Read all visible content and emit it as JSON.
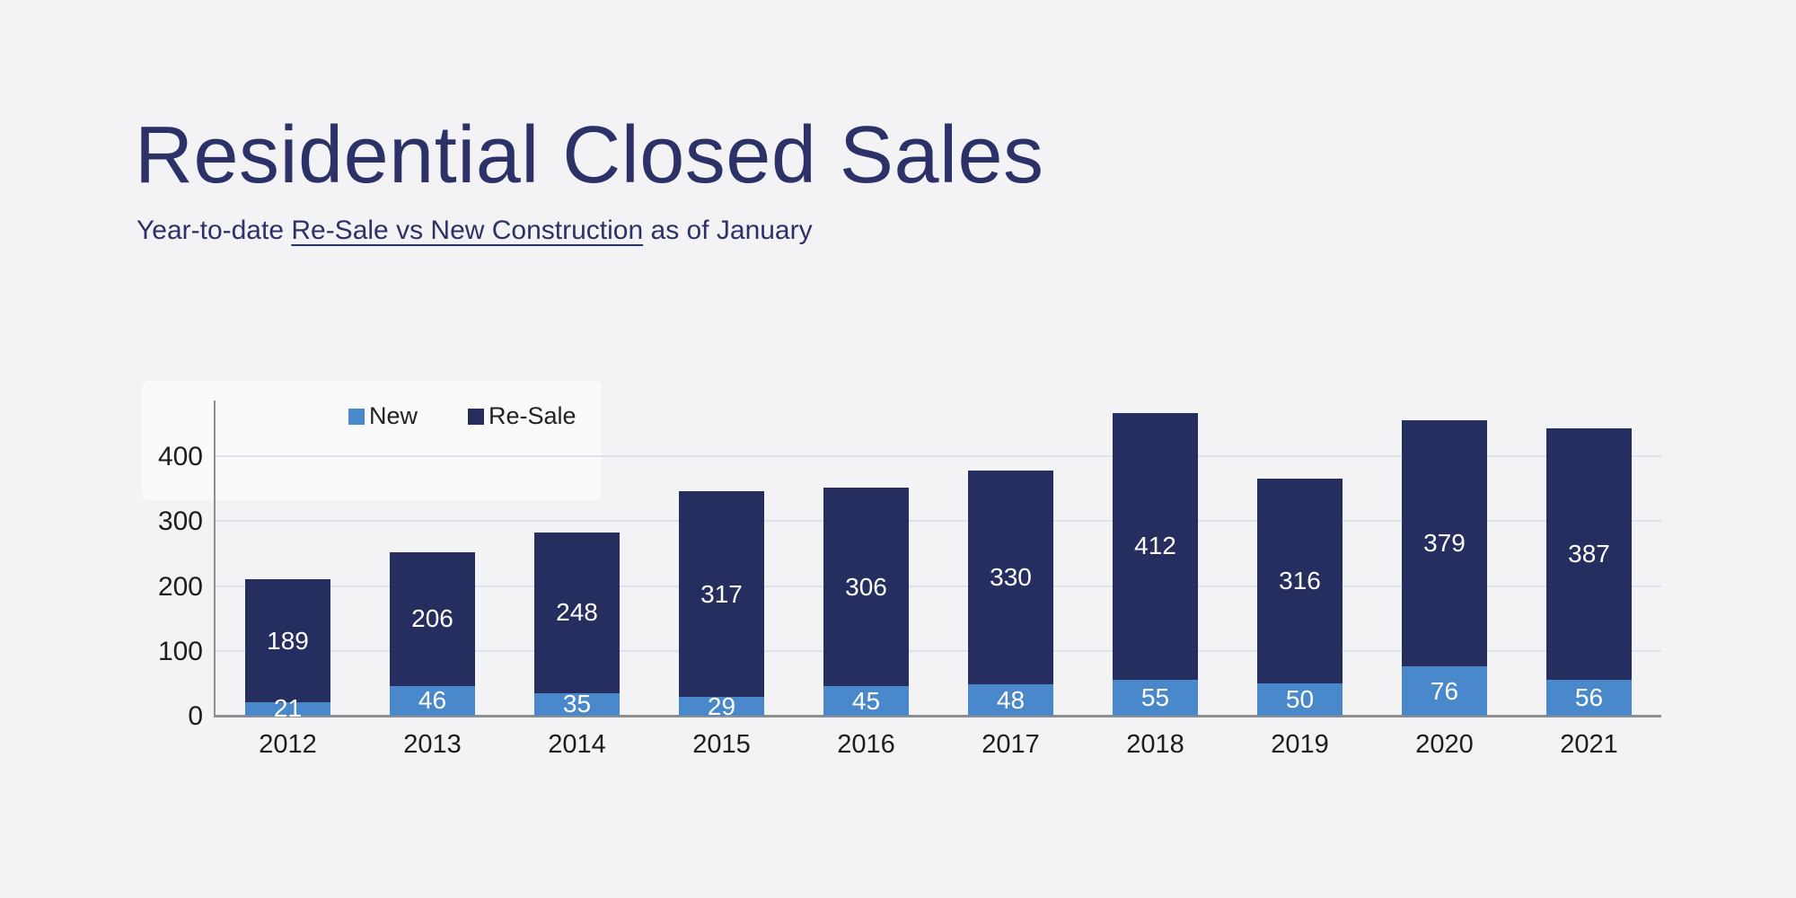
{
  "header": {
    "title": "Residential Closed Sales",
    "subtitle_prefix": "Year-to-date ",
    "subtitle_underlined": "Re-Sale vs New Construction",
    "subtitle_suffix": " as of January"
  },
  "colors": {
    "background": "#f3f3f5",
    "panel": "#fafafb",
    "title_text": "#2c3268",
    "new_series": "#4a88cc",
    "resale_series": "#262d5f",
    "gridline": "#dde2ee",
    "axis": "#8f8f8f",
    "tick_text": "#1d1d1f",
    "value_label_text": "#ffffff"
  },
  "chart_data": {
    "type": "bar",
    "stacked": true,
    "title": "Residential Closed Sales",
    "xlabel": "",
    "ylabel": "",
    "categories": [
      "2012",
      "2013",
      "2014",
      "2015",
      "2016",
      "2017",
      "2018",
      "2019",
      "2020",
      "2021"
    ],
    "series": [
      {
        "name": "New",
        "color": "#4a88cc",
        "values": [
          21,
          46,
          35,
          29,
          45,
          48,
          55,
          50,
          76,
          56
        ]
      },
      {
        "name": "Re-Sale",
        "color": "#262d5f",
        "values": [
          189,
          206,
          248,
          317,
          306,
          330,
          412,
          316,
          379,
          387
        ]
      }
    ],
    "totals": [
      210,
      252,
      283,
      346,
      351,
      378,
      467,
      366,
      455,
      443
    ],
    "ylim": [
      0,
      486
    ],
    "yticks": [
      0,
      100,
      200,
      300,
      400
    ],
    "grid": true,
    "legend_position": "top-left-inside",
    "data_labels": "inside-center-white"
  }
}
